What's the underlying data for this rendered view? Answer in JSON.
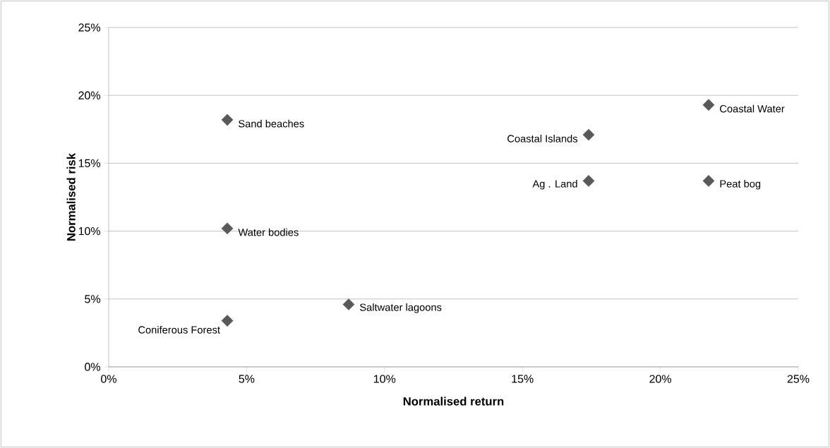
{
  "chart_data": {
    "type": "scatter",
    "xlabel": "Normalised return",
    "ylabel": "Normalised risk",
    "series": [
      {
        "color": "#595959",
        "x": [
          4.3,
          4.3,
          4.3,
          8.7,
          17.4,
          17.4,
          21.75,
          21.75
        ],
        "values": [
          18.2,
          10.2,
          3.4,
          4.6,
          17.1,
          13.7,
          13.7,
          19.3
        ]
      }
    ],
    "annotations": [
      {
        "text": "Sand beaches",
        "x": 4.3,
        "y": 18.2
      },
      {
        "text": "Water bodies",
        "x": 4.3,
        "y": 10.2
      },
      {
        "text": "Coniferous Forest",
        "x": 4.3,
        "y": 3.4
      },
      {
        "text": "Saltwater lagoons",
        "x": 8.7,
        "y": 4.6
      },
      {
        "text": "Coastal Islands",
        "x": 17.4,
        "y": 17.1
      },
      {
        "text": "Ag . Land",
        "x": 17.4,
        "y": 13.7
      },
      {
        "text": "Peat bog",
        "x": 21.75,
        "y": 13.7
      },
      {
        "text": "Coastal Water",
        "x": 21.75,
        "y": 19.3
      }
    ],
    "xlim": [
      0,
      25
    ],
    "ylim": [
      0,
      25
    ],
    "xticks": [
      {
        "value": 0,
        "label": "0%"
      },
      {
        "value": 5,
        "label": "5%"
      },
      {
        "value": 10,
        "label": "10%"
      },
      {
        "value": 15,
        "label": "15%"
      },
      {
        "value": 20,
        "label": "20%"
      },
      {
        "value": 25,
        "label": "25%"
      }
    ],
    "yticks": [
      {
        "value": 0,
        "label": "0%"
      },
      {
        "value": 5,
        "label": "5%"
      },
      {
        "value": 10,
        "label": "10%"
      },
      {
        "value": 15,
        "label": "15%"
      },
      {
        "value": 20,
        "label": "20%"
      },
      {
        "value": 25,
        "label": "25%"
      }
    ],
    "grid": "y",
    "marker": "diamond"
  }
}
